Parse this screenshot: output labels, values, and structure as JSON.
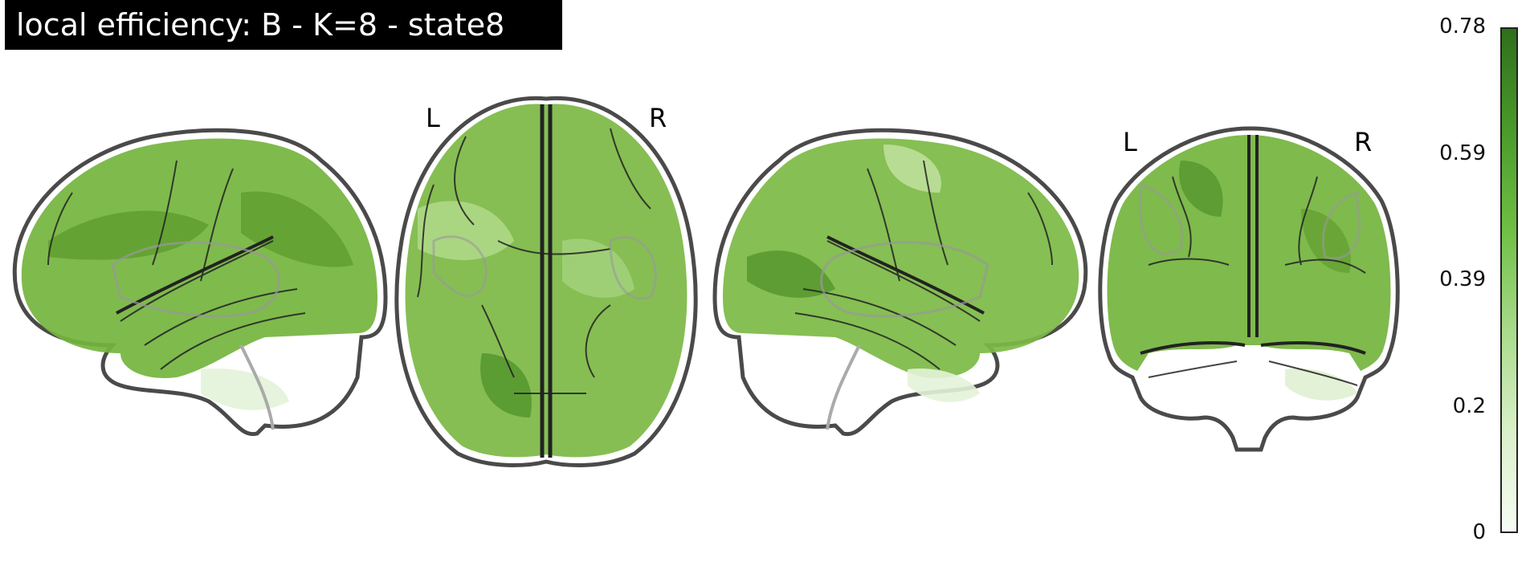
{
  "title": "local efficiency: B - K=8 - state8",
  "views": {
    "axial": {
      "left_label": "L",
      "right_label": "R"
    },
    "coronal": {
      "left_label": "L",
      "right_label": "R"
    }
  },
  "colorbar": {
    "ticks": [
      "0.78",
      "0.59",
      "0.39",
      "0.2",
      "0"
    ],
    "colors": [
      "#f7fcf5",
      "#d9f0c8",
      "#a8db8a",
      "#6fbf45",
      "#4a9a2a",
      "#2f6f1c"
    ]
  },
  "colors": {
    "brain_fill": "#74b43e",
    "brain_outline": "#4a4a4a"
  }
}
